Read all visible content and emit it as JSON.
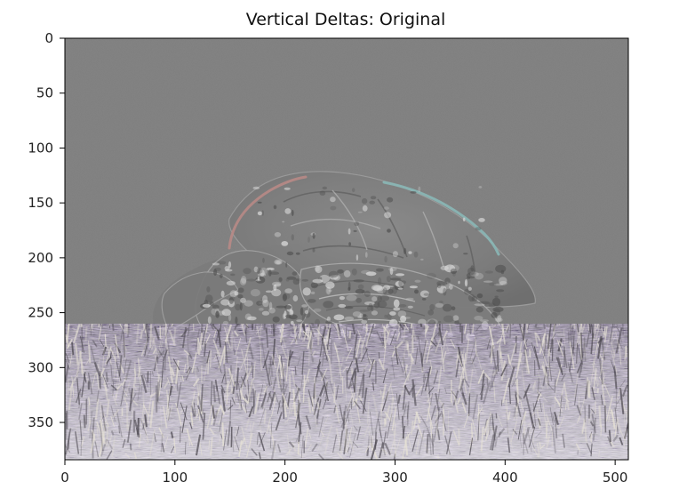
{
  "figure": {
    "title": "Vertical Deltas: Original"
  },
  "image_axes": {
    "x_ticks": [
      0,
      100,
      200,
      300,
      400,
      500
    ],
    "y_ticks": [
      0,
      50,
      100,
      150,
      200,
      250,
      300,
      350
    ],
    "x_range": [
      0,
      512
    ],
    "y_range": [
      0,
      384
    ],
    "y_inverted": true,
    "grid": false
  },
  "image_content": {
    "subject": "sea-turtle-relief",
    "background_color": "#7f7f7f",
    "ground_region_start_y": 260
  },
  "colors": {
    "panel_gray": "#7f7f7f",
    "axis_black": "#000000",
    "warm_edge": "#b88a86",
    "cool_edge": "#8ab7b6",
    "grass_light": "#e7e2d6",
    "grass_dark": "#4f4b53"
  }
}
